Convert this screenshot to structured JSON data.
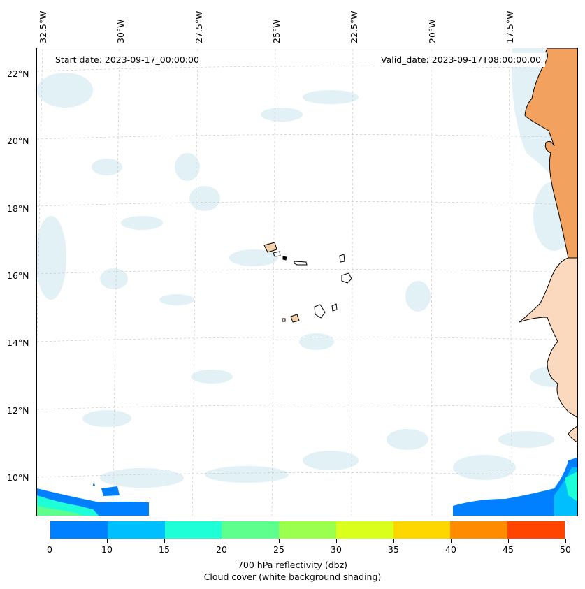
{
  "map": {
    "start_date": "Start date: 2023-09-17_00:00:00",
    "valid_date": "Valid_date: 2023-09-17T08:00:00.00",
    "lon_labels": [
      "32.5°W",
      "30°W",
      "27.5°W",
      "25°W",
      "22.5°W",
      "20°W",
      "17.5°W"
    ],
    "lat_labels": [
      "22°N",
      "20°N",
      "18°N",
      "16°N",
      "14°N",
      "12°N",
      "10°N"
    ],
    "colors": {
      "land_africa": "#f2a25e",
      "land_light": "#fbd9bf",
      "cloud": "#d7ecf3",
      "gridline": "#c9c9c9"
    }
  },
  "colorbar": {
    "tick_labels": [
      "0",
      "10",
      "15",
      "20",
      "25",
      "30",
      "35",
      "40",
      "45",
      "50"
    ],
    "colors": [
      "#0080ff",
      "#00bfff",
      "#1effd8",
      "#5eff8c",
      "#9bff50",
      "#d9ff1a",
      "#ffd700",
      "#ff8c00",
      "#ff4500"
    ],
    "label_line1": "700 hPa reflectivity (dbz)",
    "label_line2": "Cloud cover (white background shading)"
  }
}
